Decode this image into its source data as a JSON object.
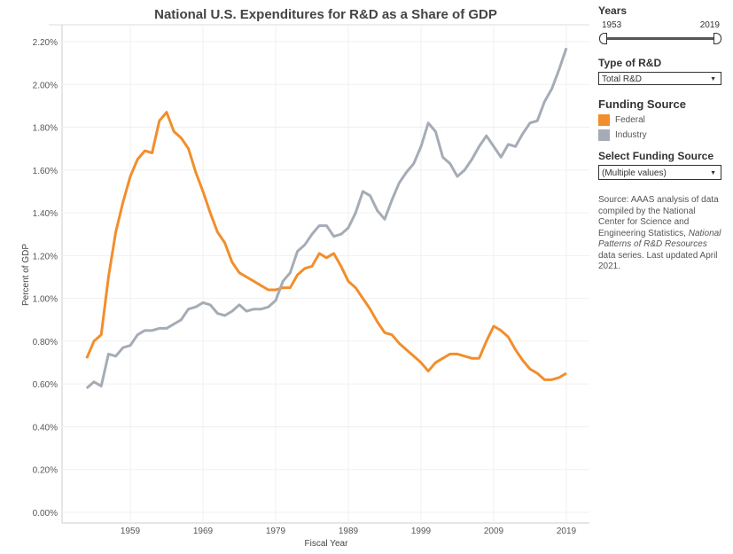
{
  "sidebar": {
    "years_label": "Years",
    "year_min": "1953",
    "year_max": "2019",
    "type_label": "Type of R&D",
    "type_value": "Total R&D",
    "funding_label": "Funding Source",
    "legend": [
      {
        "name": "Federal",
        "color": "#f28e2b"
      },
      {
        "name": "Industry",
        "color": "#a5acb5"
      }
    ],
    "select_label": "Select Funding Source",
    "select_value": "(Multiple values)",
    "source_1": "Source: AAAS analysis of data compiled by the National Center for Science and Engineering Statistics, ",
    "source_italic": "National Patterns of R&D Resources",
    "source_2": " data series. Last updated April 2021."
  },
  "chart_data": {
    "type": "line",
    "title": "National U.S. Expenditures for R&D as a Share of GDP",
    "xlabel": "Fiscal Year",
    "ylabel": "Percent of GDP",
    "xlim": [
      1950,
      2022
    ],
    "ylim": [
      0,
      2.25
    ],
    "xticks": [
      1959,
      1969,
      1979,
      1989,
      1999,
      2009,
      2019
    ],
    "yticks": [
      "0.00%",
      "0.20%",
      "0.40%",
      "0.60%",
      "0.80%",
      "1.00%",
      "1.20%",
      "1.40%",
      "1.60%",
      "1.80%",
      "2.00%",
      "2.20%"
    ],
    "x_start": 1953,
    "series": [
      {
        "name": "Federal",
        "color": "#f28e2b",
        "values": [
          0.72,
          0.8,
          0.83,
          1.1,
          1.31,
          1.45,
          1.57,
          1.65,
          1.69,
          1.68,
          1.83,
          1.87,
          1.78,
          1.75,
          1.7,
          1.59,
          1.5,
          1.4,
          1.31,
          1.26,
          1.17,
          1.12,
          1.1,
          1.08,
          1.06,
          1.04,
          1.04,
          1.05,
          1.05,
          1.11,
          1.14,
          1.15,
          1.21,
          1.19,
          1.21,
          1.15,
          1.08,
          1.05,
          1.0,
          0.95,
          0.89,
          0.84,
          0.83,
          0.79,
          0.76,
          0.73,
          0.7,
          0.66,
          0.7,
          0.72,
          0.74,
          0.74,
          0.73,
          0.72,
          0.72,
          0.8,
          0.87,
          0.85,
          0.82,
          0.76,
          0.71,
          0.67,
          0.65,
          0.62,
          0.62,
          0.63,
          0.65
        ]
      },
      {
        "name": "Industry",
        "color": "#a5acb5",
        "values": [
          0.58,
          0.61,
          0.59,
          0.74,
          0.73,
          0.77,
          0.78,
          0.83,
          0.85,
          0.85,
          0.86,
          0.86,
          0.88,
          0.9,
          0.95,
          0.96,
          0.98,
          0.97,
          0.93,
          0.92,
          0.94,
          0.97,
          0.94,
          0.95,
          0.95,
          0.96,
          0.99,
          1.08,
          1.12,
          1.22,
          1.25,
          1.3,
          1.34,
          1.34,
          1.29,
          1.3,
          1.33,
          1.4,
          1.5,
          1.48,
          1.41,
          1.37,
          1.46,
          1.54,
          1.59,
          1.63,
          1.71,
          1.82,
          1.78,
          1.66,
          1.63,
          1.57,
          1.6,
          1.65,
          1.71,
          1.76,
          1.71,
          1.66,
          1.72,
          1.71,
          1.77,
          1.82,
          1.83,
          1.92,
          1.98,
          2.07,
          2.17
        ]
      }
    ]
  }
}
